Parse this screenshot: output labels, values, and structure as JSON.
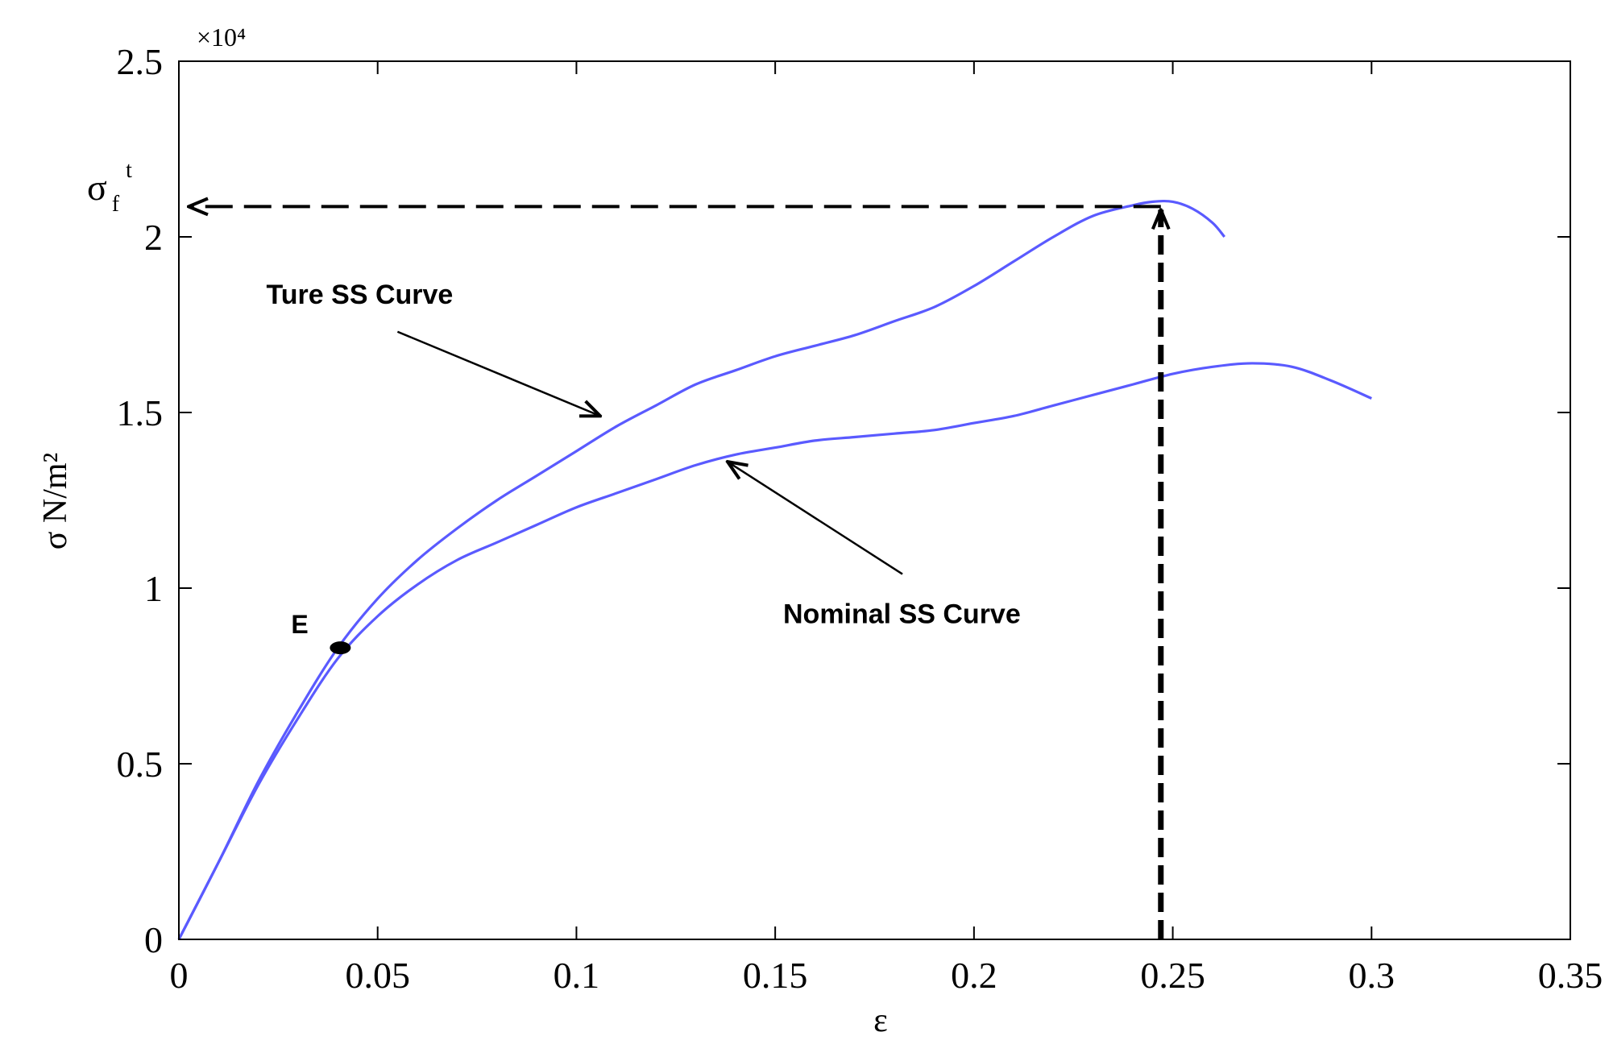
{
  "chart_data": {
    "type": "line",
    "xlabel": "ε",
    "ylabel": "σ N/m²",
    "y_multiplier": "×10⁴",
    "xlim": [
      0,
      0.35
    ],
    "ylim": [
      0,
      2.5
    ],
    "x_ticks": [
      0,
      0.05,
      0.1,
      0.15,
      0.2,
      0.25,
      0.3,
      0.35
    ],
    "x_tick_labels": [
      "0",
      "0.05",
      "0.1",
      "0.15",
      "0.2",
      "0.25",
      "0.3",
      "0.35"
    ],
    "y_ticks": [
      0,
      0.5,
      1,
      1.5,
      2,
      2.5
    ],
    "y_tick_labels": [
      "0",
      "0.5",
      "1",
      "1.5",
      "2",
      "2.5"
    ],
    "grid": false,
    "series": [
      {
        "color": "#5a5aff",
        "points": [
          [
            0,
            0
          ],
          [
            0.01,
            0.22
          ],
          [
            0.02,
            0.45
          ],
          [
            0.03,
            0.65
          ],
          [
            0.04,
            0.83
          ],
          [
            0.05,
            0.97
          ],
          [
            0.06,
            1.08
          ],
          [
            0.07,
            1.17
          ],
          [
            0.08,
            1.25
          ],
          [
            0.09,
            1.32
          ],
          [
            0.1,
            1.39
          ],
          [
            0.11,
            1.46
          ],
          [
            0.12,
            1.52
          ],
          [
            0.13,
            1.58
          ],
          [
            0.14,
            1.62
          ],
          [
            0.15,
            1.66
          ],
          [
            0.16,
            1.69
          ],
          [
            0.17,
            1.72
          ],
          [
            0.18,
            1.76
          ],
          [
            0.19,
            1.8
          ],
          [
            0.2,
            1.86
          ],
          [
            0.21,
            1.93
          ],
          [
            0.22,
            2.0
          ],
          [
            0.23,
            2.06
          ],
          [
            0.24,
            2.09
          ],
          [
            0.245,
            2.1
          ],
          [
            0.25,
            2.1
          ],
          [
            0.255,
            2.08
          ],
          [
            0.26,
            2.04
          ],
          [
            0.263,
            2.0
          ]
        ]
      },
      {
        "color": "#5a5aff",
        "points": [
          [
            0,
            0
          ],
          [
            0.01,
            0.22
          ],
          [
            0.02,
            0.44
          ],
          [
            0.03,
            0.63
          ],
          [
            0.04,
            0.8
          ],
          [
            0.05,
            0.92
          ],
          [
            0.06,
            1.01
          ],
          [
            0.07,
            1.08
          ],
          [
            0.08,
            1.13
          ],
          [
            0.09,
            1.18
          ],
          [
            0.1,
            1.23
          ],
          [
            0.11,
            1.27
          ],
          [
            0.12,
            1.31
          ],
          [
            0.13,
            1.35
          ],
          [
            0.14,
            1.38
          ],
          [
            0.15,
            1.4
          ],
          [
            0.16,
            1.42
          ],
          [
            0.17,
            1.43
          ],
          [
            0.18,
            1.44
          ],
          [
            0.19,
            1.45
          ],
          [
            0.2,
            1.47
          ],
          [
            0.21,
            1.49
          ],
          [
            0.22,
            1.52
          ],
          [
            0.23,
            1.55
          ],
          [
            0.24,
            1.58
          ],
          [
            0.25,
            1.61
          ],
          [
            0.26,
            1.63
          ],
          [
            0.27,
            1.64
          ],
          [
            0.28,
            1.63
          ],
          [
            0.29,
            1.59
          ],
          [
            0.3,
            1.54
          ]
        ]
      }
    ],
    "marker": {
      "label": "E",
      "x": 0.04,
      "y": 0.83
    },
    "peak": {
      "label_symbol": "σ",
      "label_sub": "f",
      "label_sup": "t",
      "x": 0.247,
      "y": 2.1
    },
    "annotations": [
      {
        "text": "Ture SS Curve",
        "text_x": 0.022,
        "text_y": 1.81,
        "arrow_from": [
          0.055,
          1.73
        ],
        "arrow_to": [
          0.106,
          1.49
        ]
      },
      {
        "text": "Nominal SS Curve",
        "text_x": 0.152,
        "text_y": 0.9,
        "arrow_from": [
          0.182,
          1.04
        ],
        "arrow_to": [
          0.138,
          1.36
        ]
      }
    ]
  }
}
